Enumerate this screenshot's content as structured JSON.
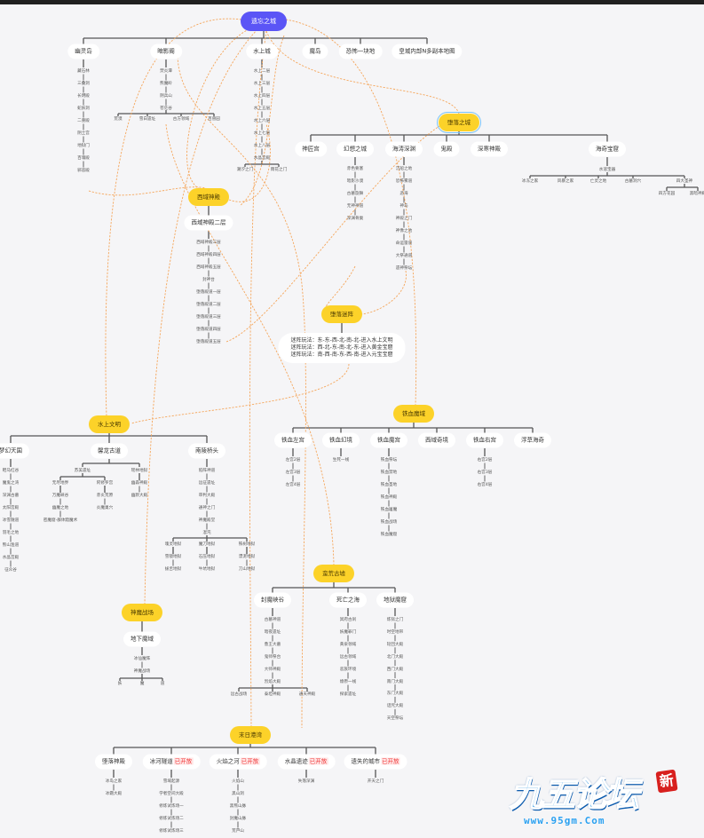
{
  "root": "遗忘之城",
  "top": [
    "幽灵岛",
    "暗影阁",
    "水上城",
    "魔岛",
    "恐怖一块地",
    "皇城内部N多副本地图"
  ],
  "youlingdao": [
    "藏石林",
    "三叠洞",
    "长明殿",
    "蛇妖洞",
    "二重殿",
    "阴土宫",
    "地狱门",
    "百魂殿",
    "邪恶殿"
  ],
  "anyingge": [
    "焚炎潭",
    "熊魔岭",
    "阴兵山",
    "苍茫谷"
  ],
  "anyingge_sub": [
    "荒漠",
    "雪白遗址",
    "古方领域",
    "百兽园"
  ],
  "shuishangcheng": [
    "水上二层",
    "水上三层",
    "水上四层",
    "水上五层",
    "水上六层",
    "水上七层",
    "水上八层",
    "水晶宫殿"
  ],
  "shuishangcheng_sub": [
    "潮汐之门",
    "雨花之门"
  ],
  "duoluo": {
    "title": "堕落之城",
    "children": [
      "神匠宫",
      "幻想之城",
      "海涛深渊",
      "鬼殿",
      "深寒神殿",
      "海奇宝窟"
    ],
    "huanxiang": [
      "赤色要塞",
      "暗影沙漠",
      "古墓旋舞",
      "无神神道",
      "深渊骨巢"
    ],
    "haitao": [
      "沉船之地",
      "恐怖雾道",
      "恶海",
      "神岛",
      "神殿之门",
      "神像之池",
      "命运雷道",
      "大祭通道",
      "遗神祭坛"
    ],
    "baoku": "水溶宝器",
    "baoku_sub": [
      "冰冻之家",
      "风暴之家",
      "亡灵之地",
      "古墓洞穴",
      "四大圣神"
    ],
    "shengshen_sub": [
      "四方花园",
      "黑暗神殿"
    ]
  },
  "xiyu": {
    "title": "西域神殿",
    "sub": "西域神殿二层",
    "list": [
      "西域神殿三层",
      "西域神殿四层",
      "西域神殿五层",
      "封神台",
      "堕落殿道一层",
      "堕落殿道二层",
      "堕落殿道三层",
      "堕落殿道四层",
      "堕落殿道五层"
    ]
  },
  "mizhen": {
    "title": "堕落迷阵",
    "lines": [
      "迷阵玩法：东-东-西-北-南-北-进入水上文明",
      "迷阵玩法：西-北-东-南-北-东-进入黄金宝窟",
      "迷阵玩法：南-西-南-东-西-南-进入元宝宝窟"
    ]
  },
  "shuishang": {
    "title": "水上文明",
    "children": [
      "梦幻天国",
      "馨龙古道",
      "南陵桥头"
    ],
    "menghuan": [
      "鞋马红谷",
      "魔鬼之湾",
      "深渊古墓",
      "太阳宫殿",
      "冰雪隧道",
      "羽毛之地",
      "熊山渔道",
      "水晶宫殿",
      "征众谷"
    ],
    "xinlong_sub": [
      "苏美遗址",
      "瑶林地狱"
    ],
    "sumei_sub": [
      "无尽地界",
      "阿修罗宫"
    ],
    "wujin": [
      "万魔峡谷",
      "幽魔之地",
      "密魔窟-群体黯魔术"
    ],
    "axiuluo": [
      "赤炎荒原",
      "炎魔巢穴"
    ],
    "yaolin": [
      "幽森神殿",
      "幽默大殿"
    ],
    "nanling": [
      "陷阵神道",
      "远征遗址",
      "审判大殿",
      "通神之门",
      "神魔殿堂",
      "混沌"
    ],
    "hundun_sub": [
      "魂灵地狱",
      "魔刀地狱",
      "铁树地狱"
    ],
    "hunling": [
      "雪镜地狱",
      "拔舌地狱"
    ],
    "modao": [
      "石压地狱",
      "牛坑地狱"
    ],
    "tieshu": [
      "漂泥地狱",
      "刀山地狱"
    ]
  },
  "tiexue": {
    "title": "铁血魔域",
    "children": [
      "铁血左宫",
      "铁血幻境",
      "铁血魔宫",
      "西域奇境",
      "铁血右宫",
      "浮草海奇"
    ],
    "zuogong": [
      "左宫2层",
      "左宫3层",
      "左宫4层"
    ],
    "huanjing": [
      "生死一线"
    ],
    "mogong": [
      "铁血祭坛",
      "铁血禁地",
      "铁血圣地",
      "铁血神殿",
      "铁血屠魔",
      "铁血战场",
      "铁血魔窟"
    ],
    "yougong": [
      "右宫2层",
      "右宫3层",
      "右宫4层"
    ]
  },
  "manhuang": {
    "title": "蛮荒古墟",
    "children": [
      "封魔峡谷",
      "死亡之海",
      "地狱魔窟"
    ],
    "fengmo": [
      "古墓神道",
      "暗夜遗址",
      "鲁王大墓",
      "鬼师祭台",
      "大师神殿",
      "烈焰大殿"
    ],
    "fengmo_sub": [
      "远古战场",
      "泰坦神殿",
      "通天神殿"
    ],
    "siwang": [
      "冥府古刹",
      "妖魔罪门",
      "黄泉领域",
      "远古领域",
      "恶族环境",
      "燎原一线",
      "探索遗址"
    ],
    "diyu": [
      "炼狱之门",
      "时空地带",
      "轮回大殿",
      "北门大殿",
      "西门大殿",
      "南门大殿",
      "东门大殿",
      "诅咒大殿",
      "天空祭坛"
    ]
  },
  "shenmo": {
    "title": "神魔战场",
    "sub": "地下魔域",
    "list": [
      "冰仙魔阵",
      "神魔战场"
    ],
    "split": [
      "妖",
      "魔",
      "道"
    ]
  },
  "mori": {
    "title": "末日港湾",
    "children": [
      {
        "label": "堕落神殿",
        "badge": ""
      },
      {
        "label": "冰河隧道",
        "badge": "已开放"
      },
      {
        "label": "火焰之河",
        "badge": "已开放"
      },
      {
        "label": "水晶遗迹",
        "badge": "已开放"
      },
      {
        "label": "遗失的城市",
        "badge": "已开放"
      }
    ],
    "c0": [
      "冰岛之家",
      "冰霜大殿"
    ],
    "c1": [
      "雪域起源",
      "学者空间大殿",
      "修炼试炼场一",
      "修炼试炼场二",
      "修炼试炼场三"
    ],
    "c2": [
      "火焰山",
      "黑山洞",
      "黑熊山脉",
      "封魔山脉",
      "荒芦山"
    ],
    "c3": [
      "失落深渊"
    ],
    "c4": [
      "开天之门"
    ]
  },
  "logo": {
    "main": "九五论坛",
    "url": "www.95gm.Com",
    "stamp": "新"
  },
  "colors": {
    "root": "#5b55f6",
    "category": "#fcd229",
    "connector": "#f5a65b",
    "badge": "#f03a3a"
  }
}
